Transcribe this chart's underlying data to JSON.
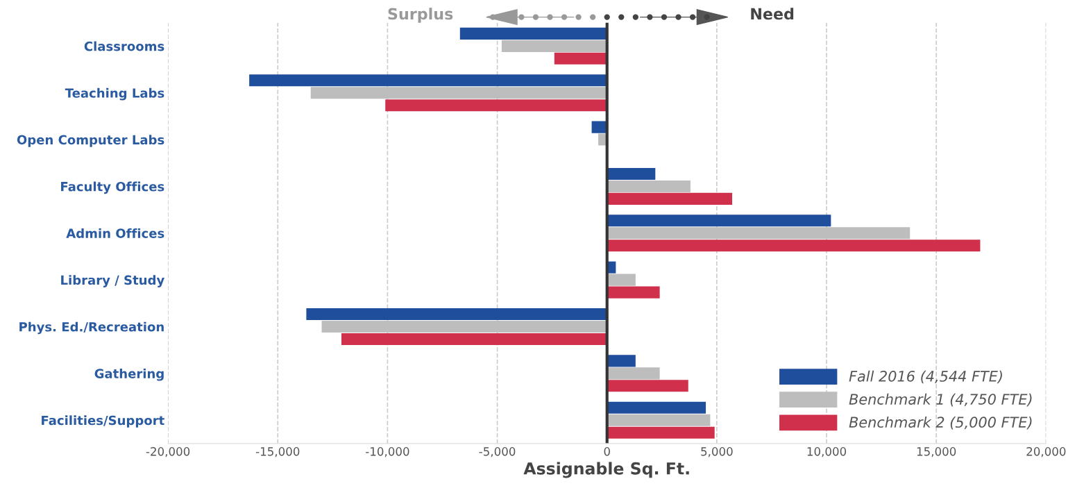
{
  "chart_data": {
    "type": "bar",
    "orientation": "horizontal",
    "xlabel": "Assignable Sq. Ft.",
    "categories": [
      "Classrooms",
      "Teaching Labs",
      "Open Computer Labs",
      "Faculty Offices",
      "Admin Offices",
      "Library / Study",
      "Phys. Ed./Recreation",
      "Gathering",
      "Facilities/Support"
    ],
    "series": [
      {
        "name": "Fall 2016 (4,544 FTE)",
        "color": "#1f4e9c",
        "values": [
          -6700,
          -16300,
          -700,
          2200,
          10200,
          400,
          -13700,
          1300,
          4500
        ]
      },
      {
        "name": "Benchmark 1 (4,750 FTE)",
        "color": "#bdbdbd",
        "values": [
          -4800,
          -13500,
          -400,
          3800,
          13800,
          1300,
          -13000,
          2400,
          4700
        ]
      },
      {
        "name": "Benchmark 2 (5,000 FTE)",
        "color": "#d0304c",
        "values": [
          -2400,
          -10100,
          0,
          5700,
          17000,
          2400,
          -12100,
          3700,
          4900
        ]
      }
    ],
    "xlim": [
      -20000,
      20000
    ],
    "xticks": [
      {
        "value": -20000,
        "label": "-20,000"
      },
      {
        "value": -15000,
        "label": "-15,000"
      },
      {
        "value": -10000,
        "label": "-10,000"
      },
      {
        "value": -5000,
        "label": "-5,000"
      },
      0,
      {
        "value": 5000,
        "label": "5,000"
      },
      {
        "value": 10000,
        "label": "10,000"
      },
      {
        "value": 15000,
        "label": "15,000"
      },
      {
        "value": 20000,
        "label": "20,000"
      }
    ],
    "ref_lines": [
      {
        "axis": "x",
        "value": 0,
        "label": null,
        "color": "#333333"
      }
    ],
    "annotations": [
      "Surplus",
      "Need"
    ],
    "grid": "x",
    "legend": "bottom right"
  }
}
